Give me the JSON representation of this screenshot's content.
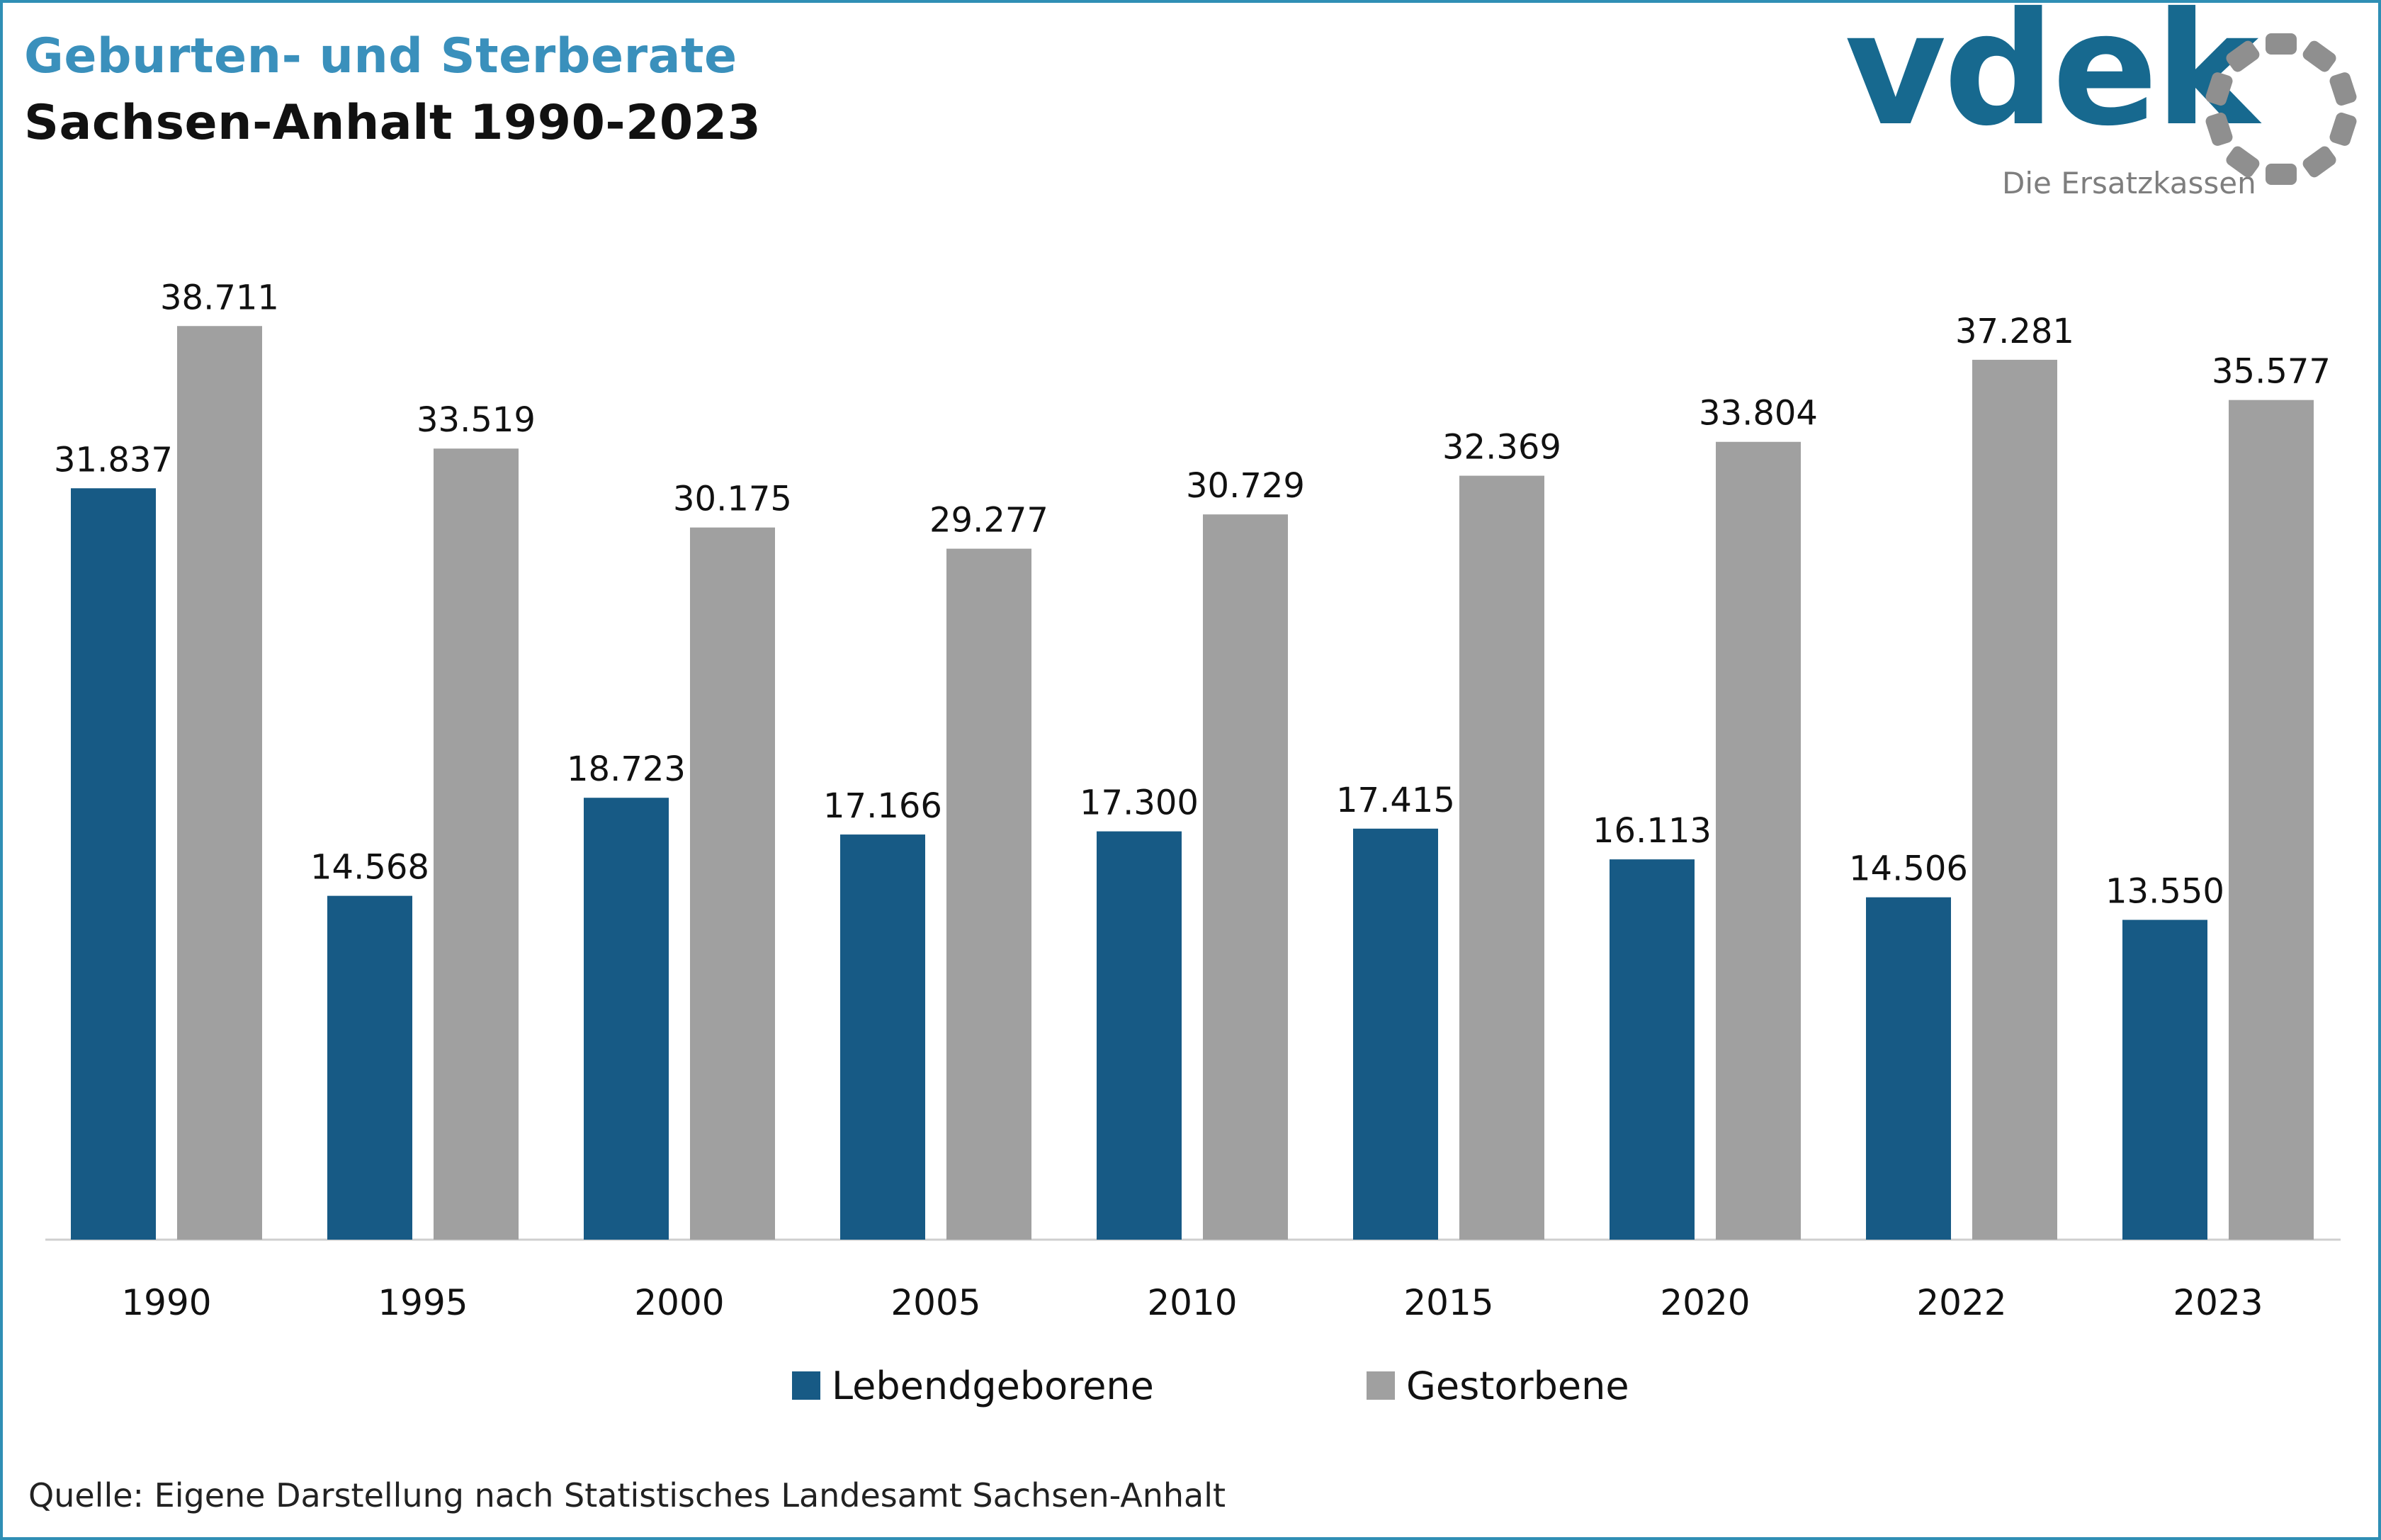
{
  "header": {
    "title": "Geburten- und Sterberate",
    "subtitle": "Sachsen-Anhalt 1990-2023"
  },
  "logo": {
    "wordmark": "vdek",
    "tagline": "Die Ersatzkassen",
    "icon": "vdek-ring-logo-icon",
    "color": "#17698f",
    "ring_color": "#8f8f8f"
  },
  "chart_data": {
    "type": "bar",
    "title": "Geburten- und Sterberate",
    "subtitle": "Sachsen-Anhalt 1990-2023",
    "categories": [
      "1990",
      "1995",
      "2000",
      "2005",
      "2010",
      "2015",
      "2020",
      "2022",
      "2023"
    ],
    "series": [
      {
        "name": "Lebendgeborene",
        "color": "#175a85",
        "values": [
          31837,
          14568,
          18723,
          17166,
          17300,
          17415,
          16113,
          14506,
          13550
        ],
        "labels": [
          "31.837",
          "14.568",
          "18.723",
          "17.166",
          "17.300",
          "17.415",
          "16.113",
          "14.506",
          "13.550"
        ]
      },
      {
        "name": "Gestorbene",
        "color": "#a0a0a0",
        "values": [
          38711,
          33519,
          30175,
          29277,
          30729,
          32369,
          33804,
          37281,
          35577
        ],
        "labels": [
          "38.711",
          "33.519",
          "30.175",
          "29.277",
          "30.729",
          "32.369",
          "33.804",
          "37.281",
          "35.577"
        ]
      }
    ],
    "ylim": [
      0,
      41000
    ],
    "grid": false,
    "legend_position": "bottom"
  },
  "footer": {
    "source": "Quelle: Eigene Darstellung nach Statistisches Landesamt Sachsen-Anhalt"
  }
}
